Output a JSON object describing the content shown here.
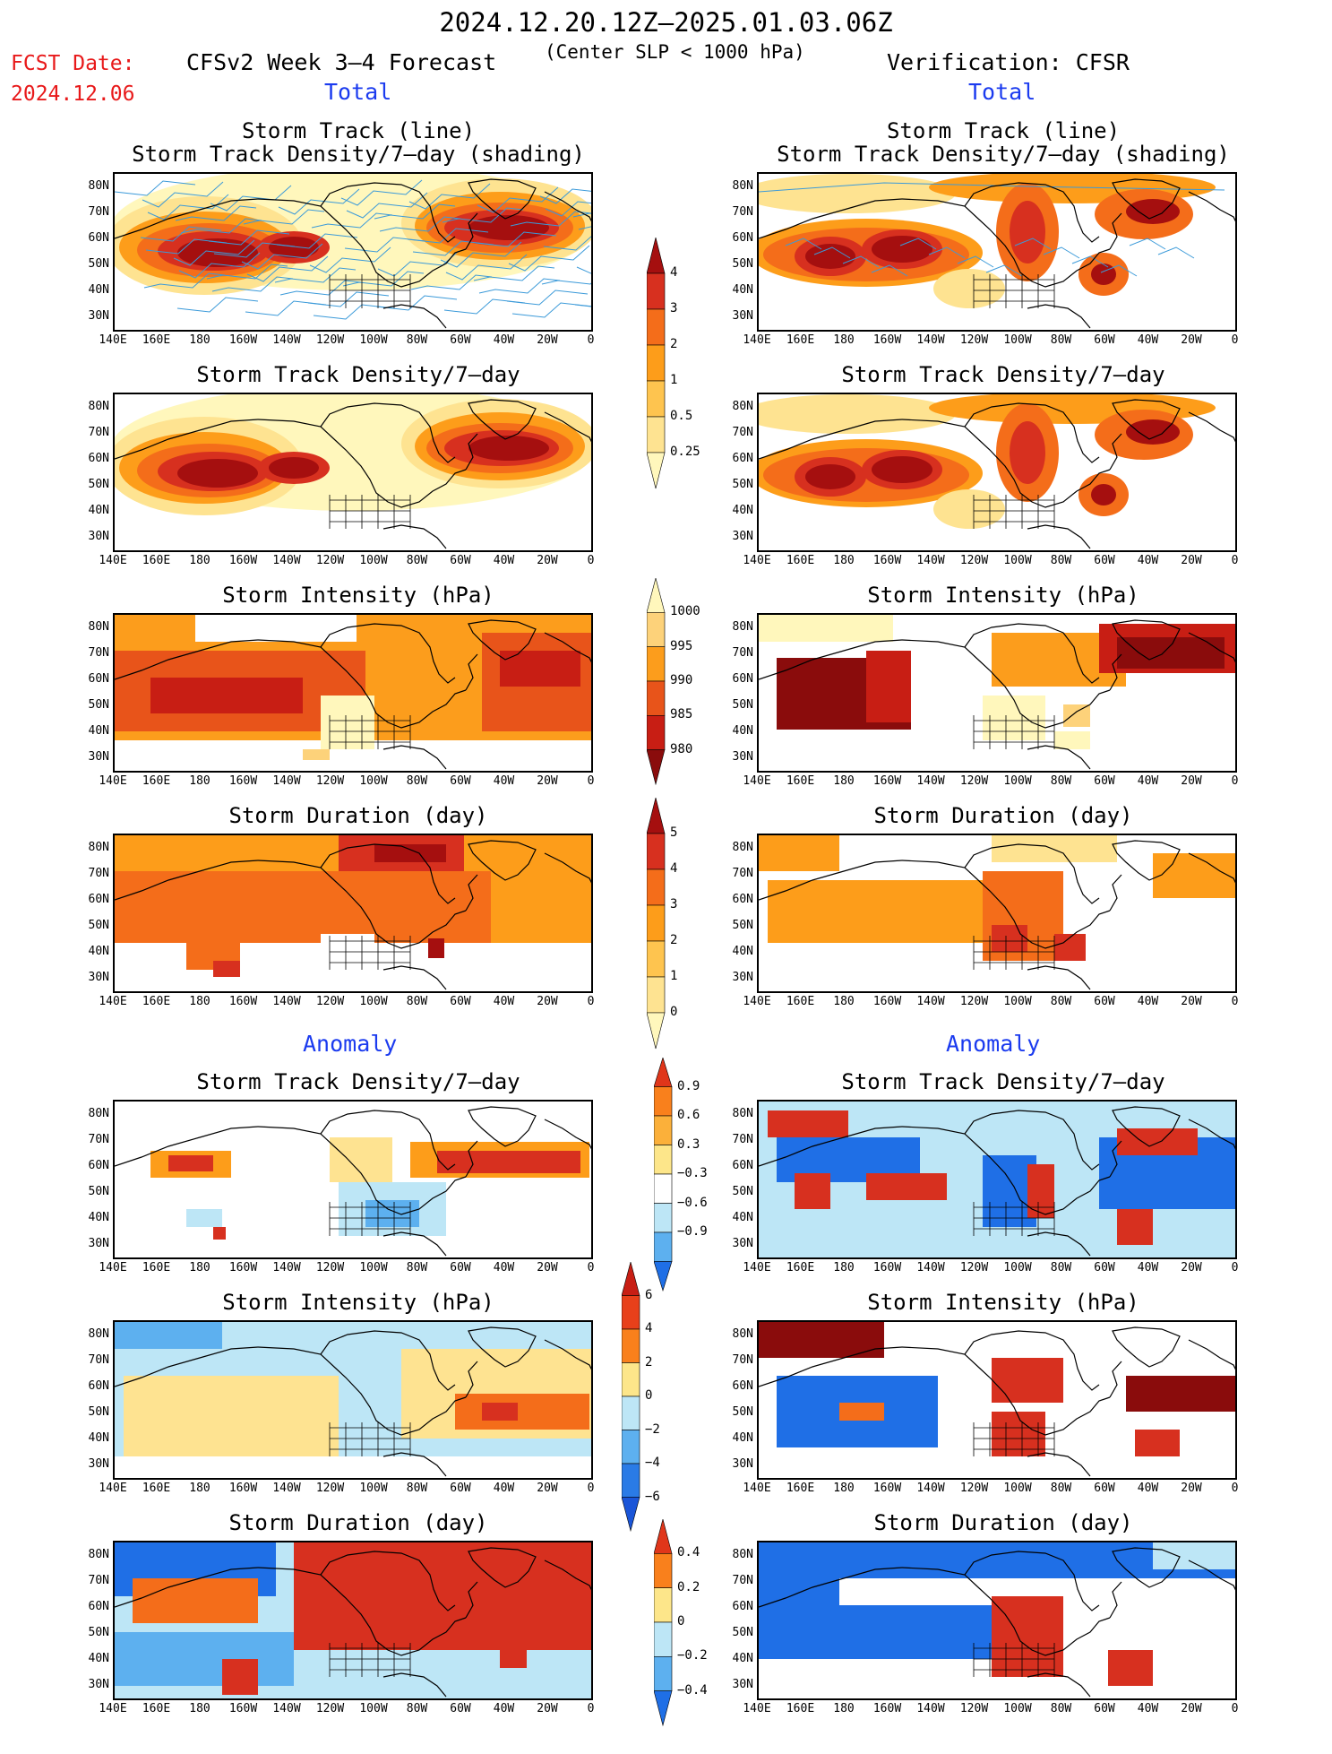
{
  "header": {
    "date_range": "2024.12.20.12Z–2025.01.03.06Z",
    "fcst_label": "FCST Date:",
    "fcst_date": "2024.12.06",
    "model_title": "CFSv2 Week 3–4 Forecast",
    "criterion": "(Center SLP < 1000 hPa)",
    "verification": "Verification: CFSR"
  },
  "sections": {
    "total": "Total",
    "anomaly": "Anomaly"
  },
  "panel_titles": {
    "track_line": "Storm Track (line)",
    "track_shading": "Storm Track Density/7–day (shading)",
    "density": "Storm Track Density/7–day",
    "intensity": "Storm Intensity (hPa)",
    "duration": "Storm Duration (day)"
  },
  "axes": {
    "lat_labels": [
      "80N",
      "70N",
      "60N",
      "50N",
      "40N",
      "30N"
    ],
    "lon_labels": [
      "140E",
      "160E",
      "180",
      "160W",
      "140W",
      "120W",
      "100W",
      "80W",
      "60W",
      "40W",
      "20W",
      "0"
    ]
  },
  "colorbars": {
    "density_total": {
      "labels": [
        "4",
        "3",
        "2",
        "1",
        "0.5",
        "0.25"
      ],
      "colors": [
        "#a50f0f",
        "#d7301f",
        "#f46d1a",
        "#fd9d1a",
        "#fec44f",
        "#fee391",
        "#fff7bc"
      ]
    },
    "intensity_total": {
      "labels": [
        "1000",
        "995",
        "990",
        "985",
        "980"
      ],
      "colors": [
        "#fff7bc",
        "#fdd27a",
        "#fc9d1c",
        "#e8541a",
        "#c81e14",
        "#8a0c0c"
      ]
    },
    "duration_total": {
      "labels": [
        "5",
        "4",
        "3",
        "2",
        "1",
        "0"
      ],
      "colors": [
        "#a50f0f",
        "#d7301f",
        "#f46d1a",
        "#fd9d1a",
        "#fec44f",
        "#fee391",
        "#fff7bc"
      ]
    },
    "density_anom": {
      "labels": [
        "0.9",
        "0.6",
        "0.3",
        "−0.3",
        "−0.6",
        "−0.9"
      ],
      "colors": [
        "#e0361a",
        "#f9801c",
        "#fbb03a",
        "#fde68a",
        "#ffffff",
        "#bde6f6",
        "#5db0ef",
        "#1f6fe6"
      ]
    },
    "intensity_anom": {
      "labels": [
        "6",
        "4",
        "2",
        "0",
        "−2",
        "−4",
        "−6"
      ],
      "colors": [
        "#c81e14",
        "#e8401a",
        "#f9801c",
        "#fde68a",
        "#bde6f6",
        "#5db0ef",
        "#2a7be6",
        "#1a55d8"
      ]
    },
    "duration_anom": {
      "labels": [
        "0.4",
        "0.2",
        "0",
        "−0.2",
        "−0.4"
      ],
      "colors": [
        "#e0361a",
        "#f9801c",
        "#fde68a",
        "#bde6f6",
        "#5db0ef",
        "#1f6fe6"
      ]
    }
  },
  "map_colors": {
    "dark_red": "#a50f0f",
    "red": "#d7301f",
    "orange": "#f46d1a",
    "light_orange": "#fd9d1a",
    "yellow": "#fee391",
    "pale_yellow": "#fff7bc",
    "light_blue": "#bde6f6",
    "mid_blue": "#5db0ef",
    "blue": "#1f6fe6",
    "track_line": "#3b9ad9"
  }
}
